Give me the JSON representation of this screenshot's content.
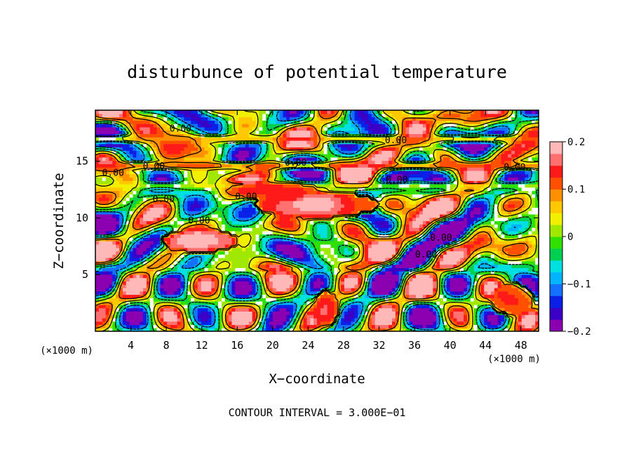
{
  "chart_data": {
    "type": "heatmap",
    "title": "disturbunce of potential temperature",
    "xlabel": "X−coordinate",
    "ylabel": "Z−coordinate",
    "x_unit_left": "(×1000 m)",
    "x_unit_right": "(×1000 m)",
    "footer": "CONTOUR INTERVAL = 3.000E−01",
    "xlim": [
      0,
      50
    ],
    "ylim": [
      0,
      19.5
    ],
    "x_ticks": [
      4,
      8,
      12,
      16,
      20,
      24,
      28,
      32,
      36,
      40,
      44,
      48
    ],
    "x_tick_labels": [
      "4",
      "8",
      "12",
      "16",
      "20",
      "24",
      "28",
      "32",
      "36",
      "40",
      "44",
      "48"
    ],
    "y_ticks": [
      5,
      10,
      15
    ],
    "y_tick_labels": [
      "5",
      "10",
      "15"
    ],
    "colorbar": {
      "range": [
        -0.2,
        0.2
      ],
      "ticks": [
        0.2,
        0.1,
        0,
        -0.1,
        -0.2
      ],
      "tick_labels": [
        "0.2",
        "0.1",
        "0",
        "−0.1",
        "−0.2"
      ],
      "colors": [
        "#8b00b0",
        "#3a00c8",
        "#0a20e6",
        "#1470ff",
        "#00b4ff",
        "#00e0e0",
        "#00d050",
        "#30e000",
        "#a0e800",
        "#f0f000",
        "#ffc800",
        "#ff9000",
        "#ff5000",
        "#ff1a1a",
        "#ff7070",
        "#ffb8b8"
      ]
    },
    "contour_labels": [
      {
        "text": "0.00",
        "x": 9.6,
        "y": 17.6
      },
      {
        "text": "0.00",
        "x": 33.9,
        "y": 16.6
      },
      {
        "text": "0.00",
        "x": 2.0,
        "y": 13.7
      },
      {
        "text": "0.00",
        "x": 6.6,
        "y": 14.3
      },
      {
        "text": "0.00",
        "x": 22.6,
        "y": 14.6
      },
      {
        "text": "0.00",
        "x": 34.0,
        "y": 13.1
      },
      {
        "text": "0.00",
        "x": 47.3,
        "y": 14.2
      },
      {
        "text": "0.00",
        "x": 7.7,
        "y": 11.4
      },
      {
        "text": "0.00",
        "x": 17.0,
        "y": 11.6
      },
      {
        "text": "0.00",
        "x": 11.7,
        "y": 9.5
      },
      {
        "text": "0.00",
        "x": 39.0,
        "y": 8.0
      },
      {
        "text": "0.00",
        "x": 37.3,
        "y": 6.5
      }
    ],
    "fields": {
      "warm_bands": [
        {
          "x": [
            0,
            50
          ],
          "z": [
            16.6,
            17.3
          ],
          "value": 0.12
        },
        {
          "x": [
            0,
            50
          ],
          "z": [
            14.4,
            14.9
          ],
          "value": 0.16
        },
        {
          "x": [
            0,
            50
          ],
          "z": [
            12.6,
            13.2
          ],
          "value": 0.04
        }
      ],
      "warm_cells": [
        {
          "x": 11.8,
          "z": 8.0,
          "rx": 4.3,
          "rz": 1.0,
          "value": 0.19
        },
        {
          "x": 25.0,
          "z": 11.2,
          "rx": 7.0,
          "rz": 1.2,
          "value": 0.18
        },
        {
          "x": 20.0,
          "z": 12.4,
          "rx": 5.0,
          "rz": 0.8,
          "value": 0.14
        },
        {
          "x": 26.0,
          "z": 2.0,
          "rx": 1.5,
          "rz": 1.6,
          "value": 0.14
        },
        {
          "x": 47.0,
          "z": 2.8,
          "rx": 2.5,
          "rz": 1.4,
          "value": 0.13
        }
      ]
    }
  }
}
